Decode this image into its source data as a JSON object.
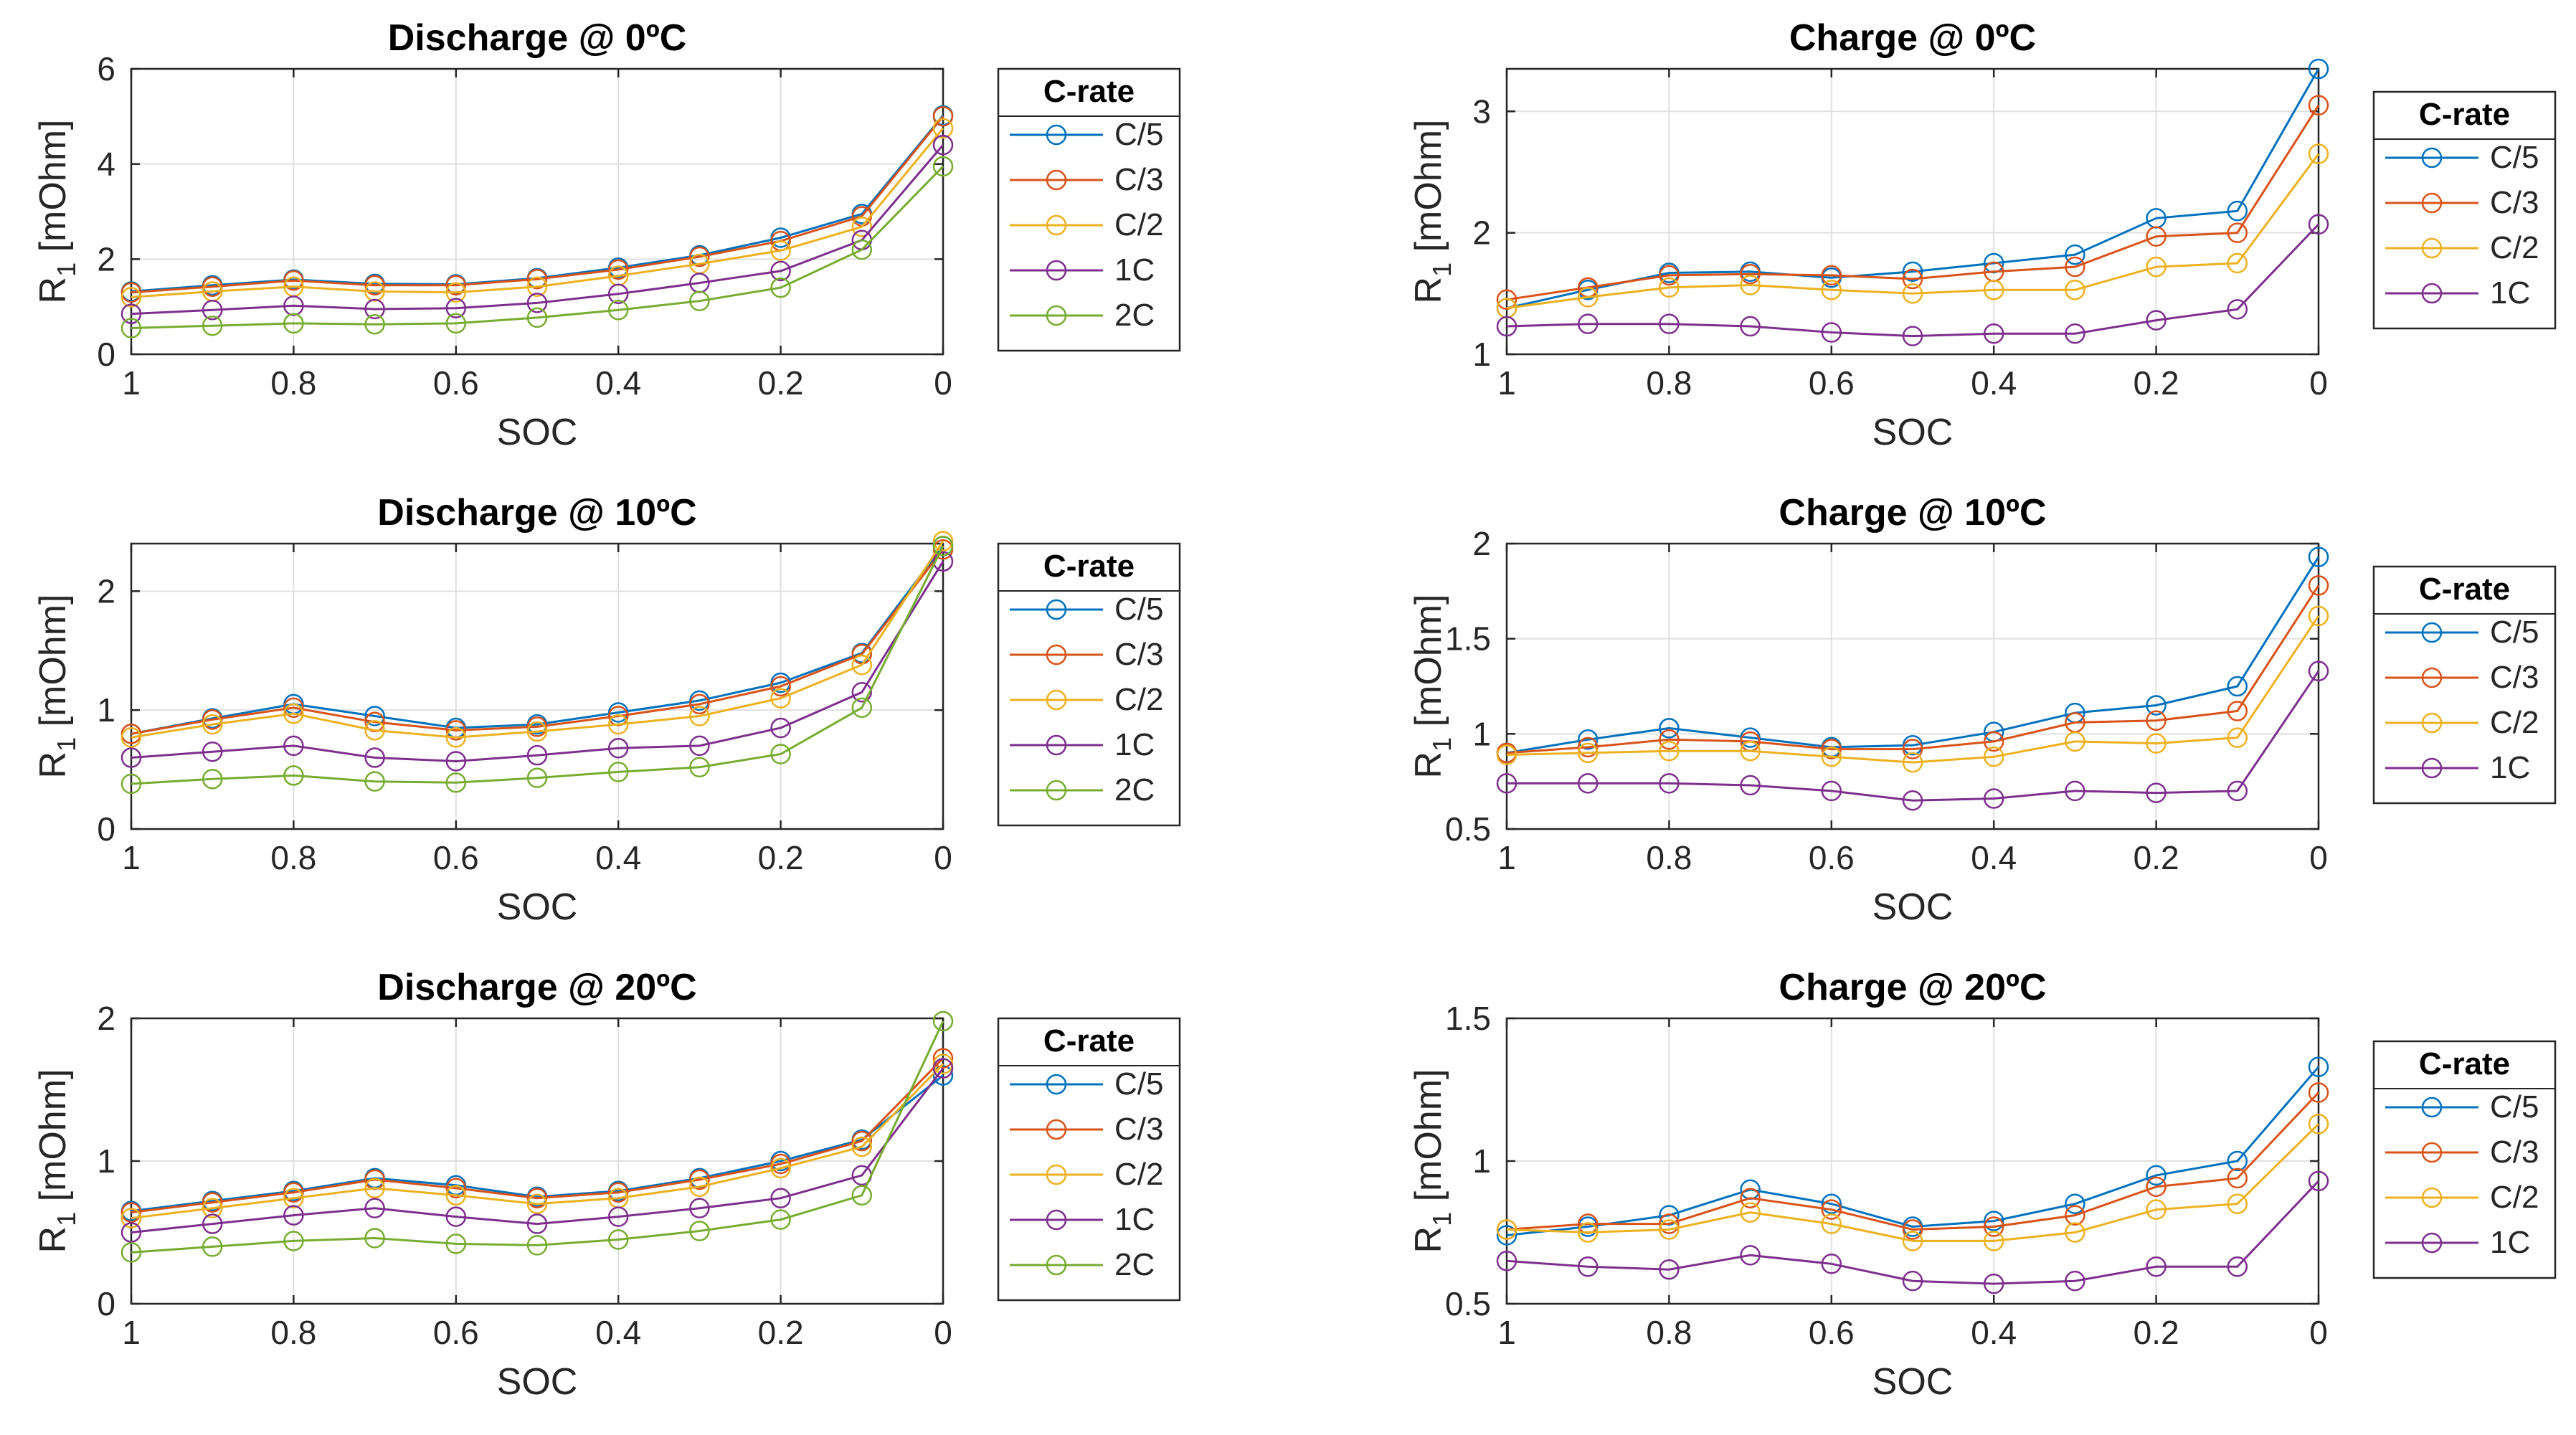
{
  "series_colors": {
    "C/5": "#0072BD",
    "C/3": "#D95319",
    "C/2": "#EDB120",
    "1C": "#7E2F8E",
    "2C": "#77AC30"
  },
  "legend_title": "C-rate",
  "chart_data": [
    {
      "type": "line",
      "title": "Discharge @ 0ºC",
      "xlabel": "SOC",
      "ylabel_main": "R",
      "ylabel_sub": "1",
      "ylabel_rest": " [mOhm]",
      "x": [
        1,
        0.9,
        0.8,
        0.7,
        0.6,
        0.5,
        0.4,
        0.3,
        0.2,
        0.1,
        0
      ],
      "xlim": [
        1,
        0
      ],
      "ylim": [
        0,
        6
      ],
      "xticks": [
        1,
        0.8,
        0.6,
        0.4,
        0.2,
        0
      ],
      "xtick_labels": [
        "1",
        "0.8",
        "0.6",
        "0.4",
        "0.2",
        "0"
      ],
      "yticks": [
        0,
        2,
        4,
        6
      ],
      "ytick_labels": [
        "0",
        "2",
        "4",
        "6"
      ],
      "grid": true,
      "legend_position": "outside-right",
      "series": [
        {
          "name": "C/5",
          "values": [
            1.32,
            1.45,
            1.57,
            1.48,
            1.47,
            1.6,
            1.82,
            2.08,
            2.45,
            2.95,
            5.02
          ]
        },
        {
          "name": "C/3",
          "values": [
            1.3,
            1.42,
            1.55,
            1.45,
            1.45,
            1.58,
            1.78,
            2.05,
            2.38,
            2.9,
            5.0
          ]
        },
        {
          "name": "C/2",
          "values": [
            1.2,
            1.32,
            1.42,
            1.32,
            1.3,
            1.42,
            1.65,
            1.9,
            2.18,
            2.68,
            4.75
          ]
        },
        {
          "name": "1C",
          "values": [
            0.85,
            0.93,
            1.02,
            0.95,
            0.97,
            1.08,
            1.27,
            1.5,
            1.75,
            2.4,
            4.4
          ]
        },
        {
          "name": "2C",
          "values": [
            0.55,
            0.6,
            0.65,
            0.63,
            0.65,
            0.77,
            0.93,
            1.12,
            1.4,
            2.2,
            3.95
          ]
        }
      ]
    },
    {
      "type": "line",
      "title": "Charge @ 0ºC",
      "xlabel": "SOC",
      "ylabel_main": "R",
      "ylabel_sub": "1",
      "ylabel_rest": " [mOhm]",
      "x": [
        1,
        0.9,
        0.8,
        0.7,
        0.6,
        0.5,
        0.4,
        0.3,
        0.2,
        0.1,
        0
      ],
      "xlim": [
        1,
        0
      ],
      "ylim": [
        1,
        3.35
      ],
      "xticks": [
        1,
        0.8,
        0.6,
        0.4,
        0.2,
        0
      ],
      "xtick_labels": [
        "1",
        "0.8",
        "0.6",
        "0.4",
        "0.2",
        "0"
      ],
      "yticks": [
        1,
        2,
        3
      ],
      "ytick_labels": [
        "1",
        "2",
        "3"
      ],
      "grid": true,
      "legend_position": "outside-right",
      "series": [
        {
          "name": "C/5",
          "values": [
            1.38,
            1.53,
            1.67,
            1.68,
            1.63,
            1.68,
            1.75,
            1.82,
            2.12,
            2.18,
            3.35
          ]
        },
        {
          "name": "C/3",
          "values": [
            1.45,
            1.55,
            1.65,
            1.66,
            1.65,
            1.62,
            1.68,
            1.72,
            1.97,
            2.0,
            3.05
          ]
        },
        {
          "name": "C/2",
          "values": [
            1.38,
            1.47,
            1.55,
            1.57,
            1.53,
            1.5,
            1.53,
            1.53,
            1.72,
            1.75,
            2.65
          ]
        },
        {
          "name": "1C",
          "values": [
            1.23,
            1.25,
            1.25,
            1.23,
            1.18,
            1.15,
            1.17,
            1.17,
            1.28,
            1.37,
            2.07
          ]
        }
      ]
    },
    {
      "type": "line",
      "title": "Discharge @ 10ºC",
      "xlabel": "SOC",
      "ylabel_main": "R",
      "ylabel_sub": "1",
      "ylabel_rest": " [mOhm]",
      "x": [
        1,
        0.9,
        0.8,
        0.7,
        0.6,
        0.5,
        0.4,
        0.3,
        0.2,
        0.1,
        0
      ],
      "xlim": [
        1,
        0
      ],
      "ylim": [
        0,
        2.4
      ],
      "xticks": [
        1,
        0.8,
        0.6,
        0.4,
        0.2,
        0
      ],
      "xtick_labels": [
        "1",
        "0.8",
        "0.6",
        "0.4",
        "0.2",
        "0"
      ],
      "yticks": [
        0,
        1,
        2
      ],
      "ytick_labels": [
        "0",
        "1",
        "2"
      ],
      "grid": true,
      "legend_position": "outside-right",
      "series": [
        {
          "name": "C/5",
          "values": [
            0.8,
            0.93,
            1.05,
            0.95,
            0.85,
            0.88,
            0.98,
            1.08,
            1.23,
            1.48,
            2.38
          ]
        },
        {
          "name": "C/3",
          "values": [
            0.8,
            0.92,
            1.02,
            0.9,
            0.83,
            0.86,
            0.95,
            1.05,
            1.2,
            1.47,
            2.35
          ]
        },
        {
          "name": "C/2",
          "values": [
            0.77,
            0.88,
            0.97,
            0.83,
            0.77,
            0.82,
            0.88,
            0.95,
            1.1,
            1.38,
            2.42
          ]
        },
        {
          "name": "1C",
          "values": [
            0.6,
            0.65,
            0.7,
            0.6,
            0.57,
            0.62,
            0.68,
            0.7,
            0.85,
            1.15,
            2.25
          ]
        },
        {
          "name": "2C",
          "values": [
            0.38,
            0.42,
            0.45,
            0.4,
            0.39,
            0.43,
            0.48,
            0.52,
            0.63,
            1.02,
            2.38
          ]
        }
      ]
    },
    {
      "type": "line",
      "title": "Charge @ 10ºC",
      "xlabel": "SOC",
      "ylabel_main": "R",
      "ylabel_sub": "1",
      "ylabel_rest": " [mOhm]",
      "x": [
        1,
        0.9,
        0.8,
        0.7,
        0.6,
        0.5,
        0.4,
        0.3,
        0.2,
        0.1,
        0
      ],
      "xlim": [
        1,
        0
      ],
      "ylim": [
        0.5,
        2
      ],
      "xticks": [
        1,
        0.8,
        0.6,
        0.4,
        0.2,
        0
      ],
      "xtick_labels": [
        "1",
        "0.8",
        "0.6",
        "0.4",
        "0.2",
        "0"
      ],
      "yticks": [
        0.5,
        1,
        1.5,
        2
      ],
      "ytick_labels": [
        "0.5",
        "1",
        "1.5",
        "2"
      ],
      "grid": true,
      "legend_position": "outside-right",
      "series": [
        {
          "name": "C/5",
          "values": [
            0.9,
            0.97,
            1.03,
            0.98,
            0.93,
            0.94,
            1.01,
            1.11,
            1.15,
            1.25,
            1.93
          ]
        },
        {
          "name": "C/3",
          "values": [
            0.9,
            0.93,
            0.97,
            0.96,
            0.92,
            0.92,
            0.96,
            1.06,
            1.07,
            1.12,
            1.78
          ]
        },
        {
          "name": "C/2",
          "values": [
            0.89,
            0.9,
            0.91,
            0.91,
            0.88,
            0.85,
            0.88,
            0.96,
            0.95,
            0.98,
            1.62
          ]
        },
        {
          "name": "1C",
          "values": [
            0.74,
            0.74,
            0.74,
            0.73,
            0.7,
            0.65,
            0.66,
            0.7,
            0.69,
            0.7,
            1.33
          ]
        }
      ]
    },
    {
      "type": "line",
      "title": "Discharge @ 20ºC",
      "xlabel": "SOC",
      "ylabel_main": "R",
      "ylabel_sub": "1",
      "ylabel_rest": " [mOhm]",
      "x": [
        1,
        0.9,
        0.8,
        0.7,
        0.6,
        0.5,
        0.4,
        0.3,
        0.2,
        0.1,
        0
      ],
      "xlim": [
        1,
        0
      ],
      "ylim": [
        0,
        2
      ],
      "xticks": [
        1,
        0.8,
        0.6,
        0.4,
        0.2,
        0
      ],
      "xtick_labels": [
        "1",
        "0.8",
        "0.6",
        "0.4",
        "0.2",
        "0"
      ],
      "yticks": [
        0,
        1,
        2
      ],
      "ytick_labels": [
        "0",
        "1",
        "2"
      ],
      "grid": true,
      "legend_position": "outside-right",
      "series": [
        {
          "name": "C/5",
          "values": [
            0.65,
            0.72,
            0.79,
            0.88,
            0.83,
            0.75,
            0.79,
            0.88,
            1.0,
            1.15,
            1.6
          ]
        },
        {
          "name": "C/3",
          "values": [
            0.64,
            0.71,
            0.78,
            0.87,
            0.81,
            0.74,
            0.78,
            0.87,
            0.98,
            1.14,
            1.72
          ]
        },
        {
          "name": "C/2",
          "values": [
            0.6,
            0.67,
            0.74,
            0.81,
            0.76,
            0.7,
            0.74,
            0.82,
            0.95,
            1.1,
            1.68
          ]
        },
        {
          "name": "1C",
          "values": [
            0.5,
            0.56,
            0.62,
            0.67,
            0.61,
            0.56,
            0.61,
            0.67,
            0.74,
            0.9,
            1.65
          ]
        },
        {
          "name": "2C",
          "values": [
            0.36,
            0.4,
            0.44,
            0.46,
            0.42,
            0.41,
            0.45,
            0.51,
            0.59,
            0.76,
            1.98
          ]
        }
      ]
    },
    {
      "type": "line",
      "title": "Charge @ 20ºC",
      "xlabel": "SOC",
      "ylabel_main": "R",
      "ylabel_sub": "1",
      "ylabel_rest": " [mOhm]",
      "x": [
        1,
        0.9,
        0.8,
        0.7,
        0.6,
        0.5,
        0.4,
        0.3,
        0.2,
        0.1,
        0
      ],
      "xlim": [
        1,
        0
      ],
      "ylim": [
        0.5,
        1.5
      ],
      "xticks": [
        1,
        0.8,
        0.6,
        0.4,
        0.2,
        0
      ],
      "xtick_labels": [
        "1",
        "0.8",
        "0.6",
        "0.4",
        "0.2",
        "0"
      ],
      "yticks": [
        0.5,
        1,
        1.5
      ],
      "ytick_labels": [
        "0.5",
        "1",
        "1.5"
      ],
      "grid": true,
      "legend_position": "outside-right",
      "series": [
        {
          "name": "C/5",
          "values": [
            0.74,
            0.77,
            0.81,
            0.9,
            0.85,
            0.77,
            0.79,
            0.85,
            0.95,
            1.0,
            1.33
          ]
        },
        {
          "name": "C/3",
          "values": [
            0.76,
            0.78,
            0.78,
            0.87,
            0.83,
            0.76,
            0.77,
            0.81,
            0.91,
            0.94,
            1.24
          ]
        },
        {
          "name": "C/2",
          "values": [
            0.76,
            0.75,
            0.76,
            0.82,
            0.78,
            0.72,
            0.72,
            0.75,
            0.83,
            0.85,
            1.13
          ]
        },
        {
          "name": "1C",
          "values": [
            0.65,
            0.63,
            0.62,
            0.67,
            0.64,
            0.58,
            0.57,
            0.58,
            0.63,
            0.63,
            0.93
          ]
        }
      ]
    }
  ]
}
